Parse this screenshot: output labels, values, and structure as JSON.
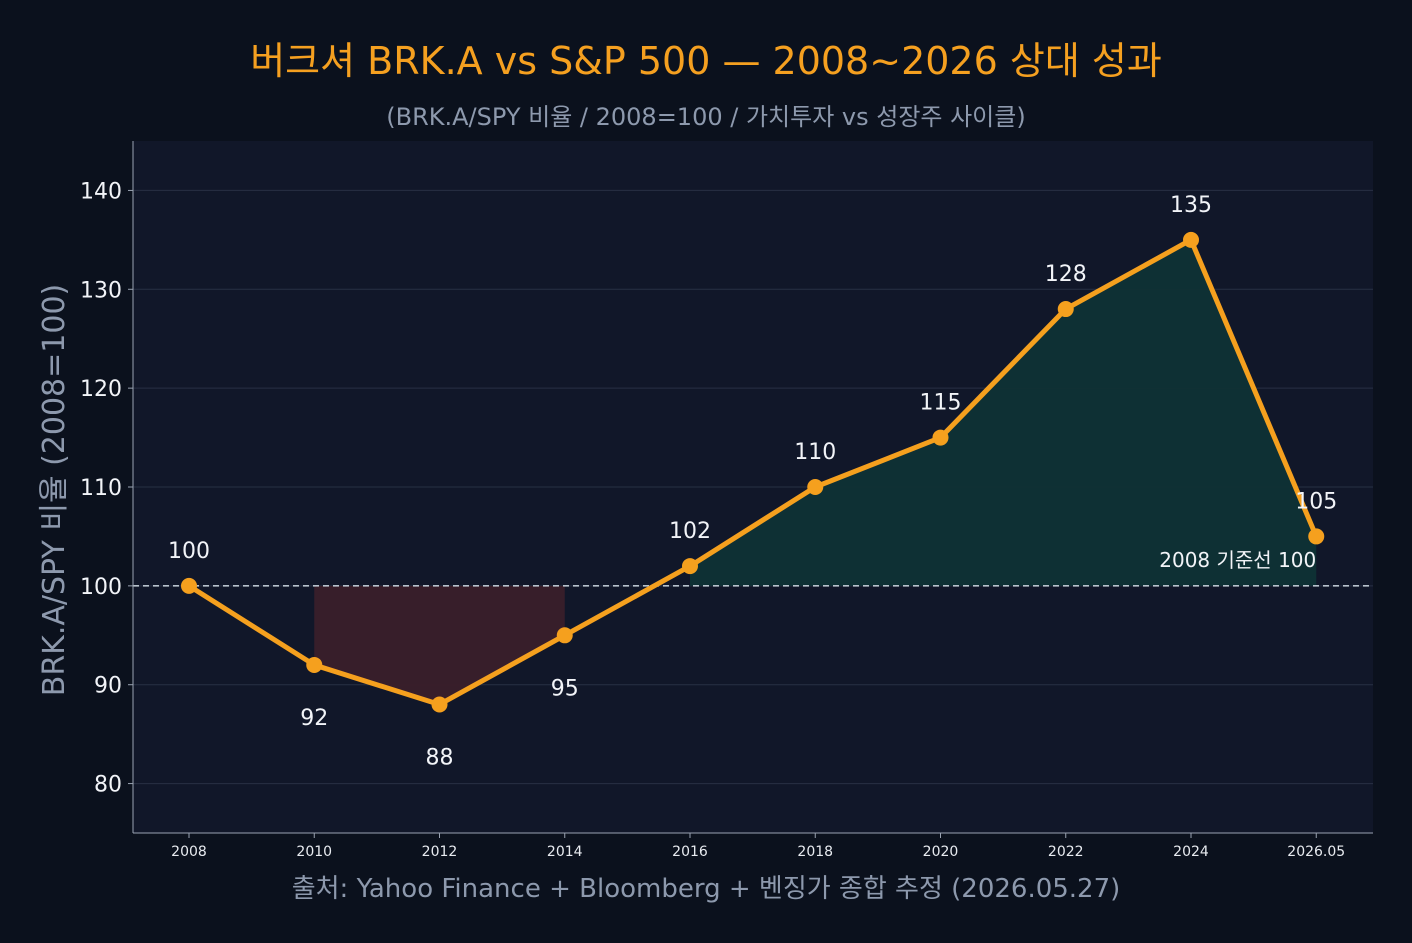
{
  "title": "버크셔 BRK.A vs S&P 500 — 2008~2026 상대 성과",
  "subtitle": "(BRK.A/SPY 비율 / 2008=100 / 가치투자 vs 성장주 사이클)",
  "source": "출처: Yahoo Finance + Bloomberg + 벤징가 종합 추정 (2026.05.27)",
  "colors": {
    "background": "#0b111d",
    "plot_background": "#111729",
    "line": "#f5a01e",
    "underperform_fill": "#3a1f2a",
    "outperform_fill": "#0f3135",
    "baseline": "#b8c2cc",
    "title": "#f5a020",
    "muted_text": "#8d99ad"
  },
  "chart_data": {
    "type": "line",
    "x": [
      "2008",
      "2010",
      "2012",
      "2014",
      "2016",
      "2018",
      "2020",
      "2022",
      "2024",
      "2026.05"
    ],
    "series": [
      {
        "values": [
          100,
          92,
          88,
          95,
          102,
          110,
          115,
          128,
          135,
          105
        ]
      }
    ],
    "data_labels": [
      "100",
      "92",
      "88",
      "95",
      "102",
      "110",
      "115",
      "128",
      "135",
      "105"
    ],
    "ylabel": "BRK.A/SPY 비율 (2008=100)",
    "xlabel": "",
    "ylim": [
      75,
      145
    ],
    "yticks": [
      80,
      90,
      100,
      110,
      120,
      130,
      140
    ],
    "grid": true,
    "baseline": {
      "value": 100,
      "label": "2008 기준선 100",
      "style": "dashed"
    },
    "shading": [
      {
        "type": "below_baseline",
        "from": "2010",
        "to": "2014"
      },
      {
        "type": "above_baseline",
        "from": "2016",
        "to": "2026.05"
      }
    ]
  }
}
